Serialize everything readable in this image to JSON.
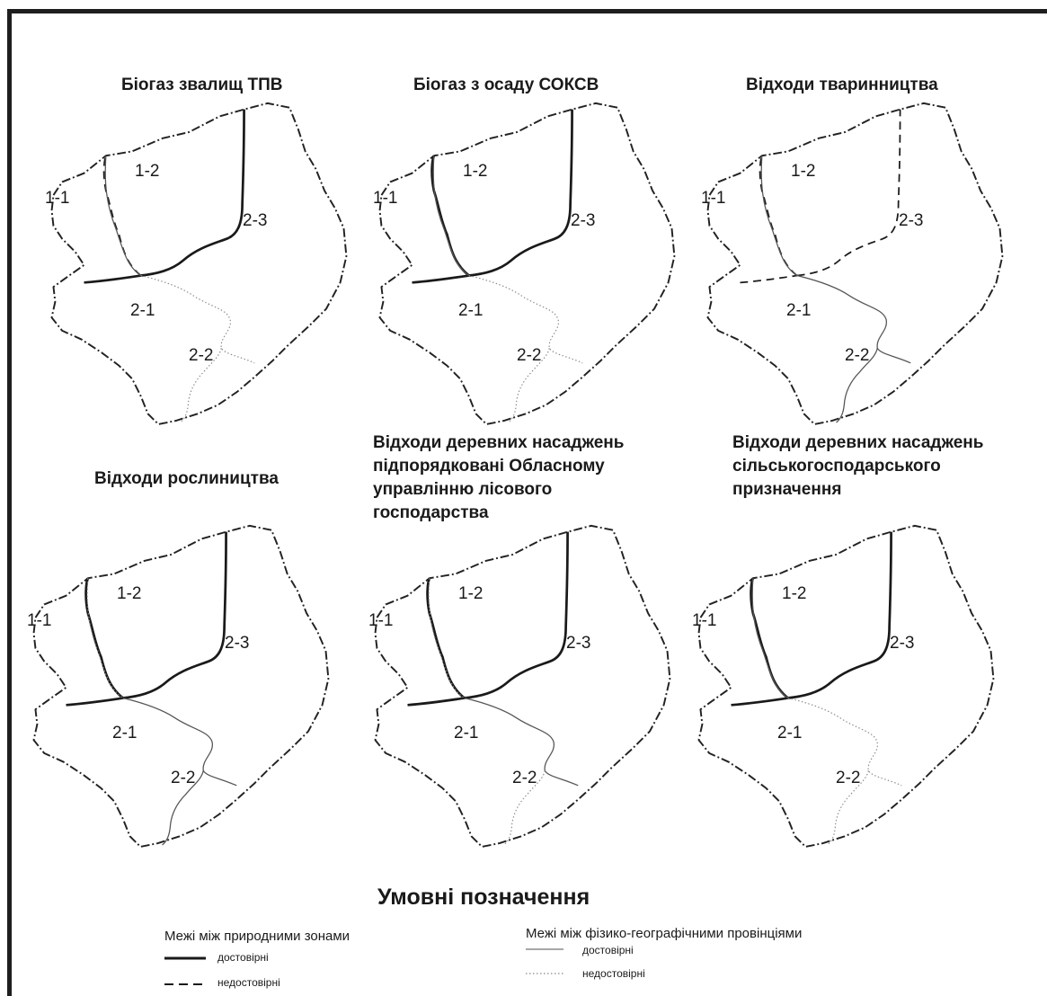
{
  "maps": [
    {
      "title": [
        "Біогаз звалищ ТПВ"
      ],
      "labels": [
        "1-1",
        "1-2",
        "2-3",
        "2-1",
        "2-2"
      ],
      "borders": {
        "a": "nat-solid",
        "b": "nat-solid",
        "c": "nat-dashed",
        "d": "prov-dotted",
        "e": "prov-dotted",
        "f": "prov-solid"
      }
    },
    {
      "title": [
        "Біогаз з осаду СОКСВ"
      ],
      "labels": [
        "1-1",
        "1-2",
        "2-3",
        "2-1",
        "2-2"
      ],
      "borders": {
        "a": "nat-solid",
        "b": "nat-solid",
        "c": "nat-solid",
        "d": "prov-dotted",
        "e": "prov-dotted",
        "f": "prov-solid"
      }
    },
    {
      "title": [
        "Відходи тваринництва"
      ],
      "labels": [
        "1-1",
        "1-2",
        "2-3",
        "2-1",
        "2-2"
      ],
      "borders": {
        "a": "nat-dashed",
        "b": "nat-dashed",
        "c": "nat-dashed",
        "d": "prov-solid",
        "e": "prov-solid",
        "f": "prov-solid"
      }
    },
    {
      "title": [
        "Відходи рослиництва"
      ],
      "labels": [
        "1-1",
        "1-2",
        "2-3",
        "2-1",
        "2-2"
      ],
      "borders": {
        "a": "nat-solid",
        "b": "nat-solid",
        "c": "nat-solid",
        "d": "prov-solid",
        "e": "prov-solid",
        "f": "prov-dotted"
      }
    },
    {
      "title": [
        "Відходи деревних насаджень",
        "підпорядковані Обласному",
        "управлінню лісового",
        "господарства"
      ],
      "labels": [
        "1-1",
        "1-2",
        "2-3",
        "2-1",
        "2-2"
      ],
      "borders": {
        "a": "nat-solid",
        "b": "nat-solid",
        "c": "nat-solid",
        "d": "prov-solid",
        "e": "prov-dotted",
        "f": "prov-dotted"
      }
    },
    {
      "title": [
        "Відходи деревних насаджень",
        "сільськогосподарського",
        "призначення"
      ],
      "labels": [
        "1-1",
        "1-2",
        "2-3",
        "2-1",
        "2-2"
      ],
      "borders": {
        "a": "nat-solid",
        "b": "nat-solid",
        "c": "nat-solid",
        "d": "prov-dotted",
        "e": "prov-dotted",
        "f": "prov-solid"
      }
    }
  ],
  "legend": {
    "title": "Умовні позначення",
    "natural_zones": {
      "heading": "Межі між природними зонами",
      "reliable": "достовірні",
      "unreliable": "недостовірні"
    },
    "provinces": {
      "heading": "Межі між фізико-географічними провінціями",
      "reliable": "достовірні",
      "unreliable": "недостовірні"
    }
  },
  "colors": {
    "ink": "#1a1a1a",
    "province_line": "#8a8a8a",
    "outline": "#222222"
  }
}
